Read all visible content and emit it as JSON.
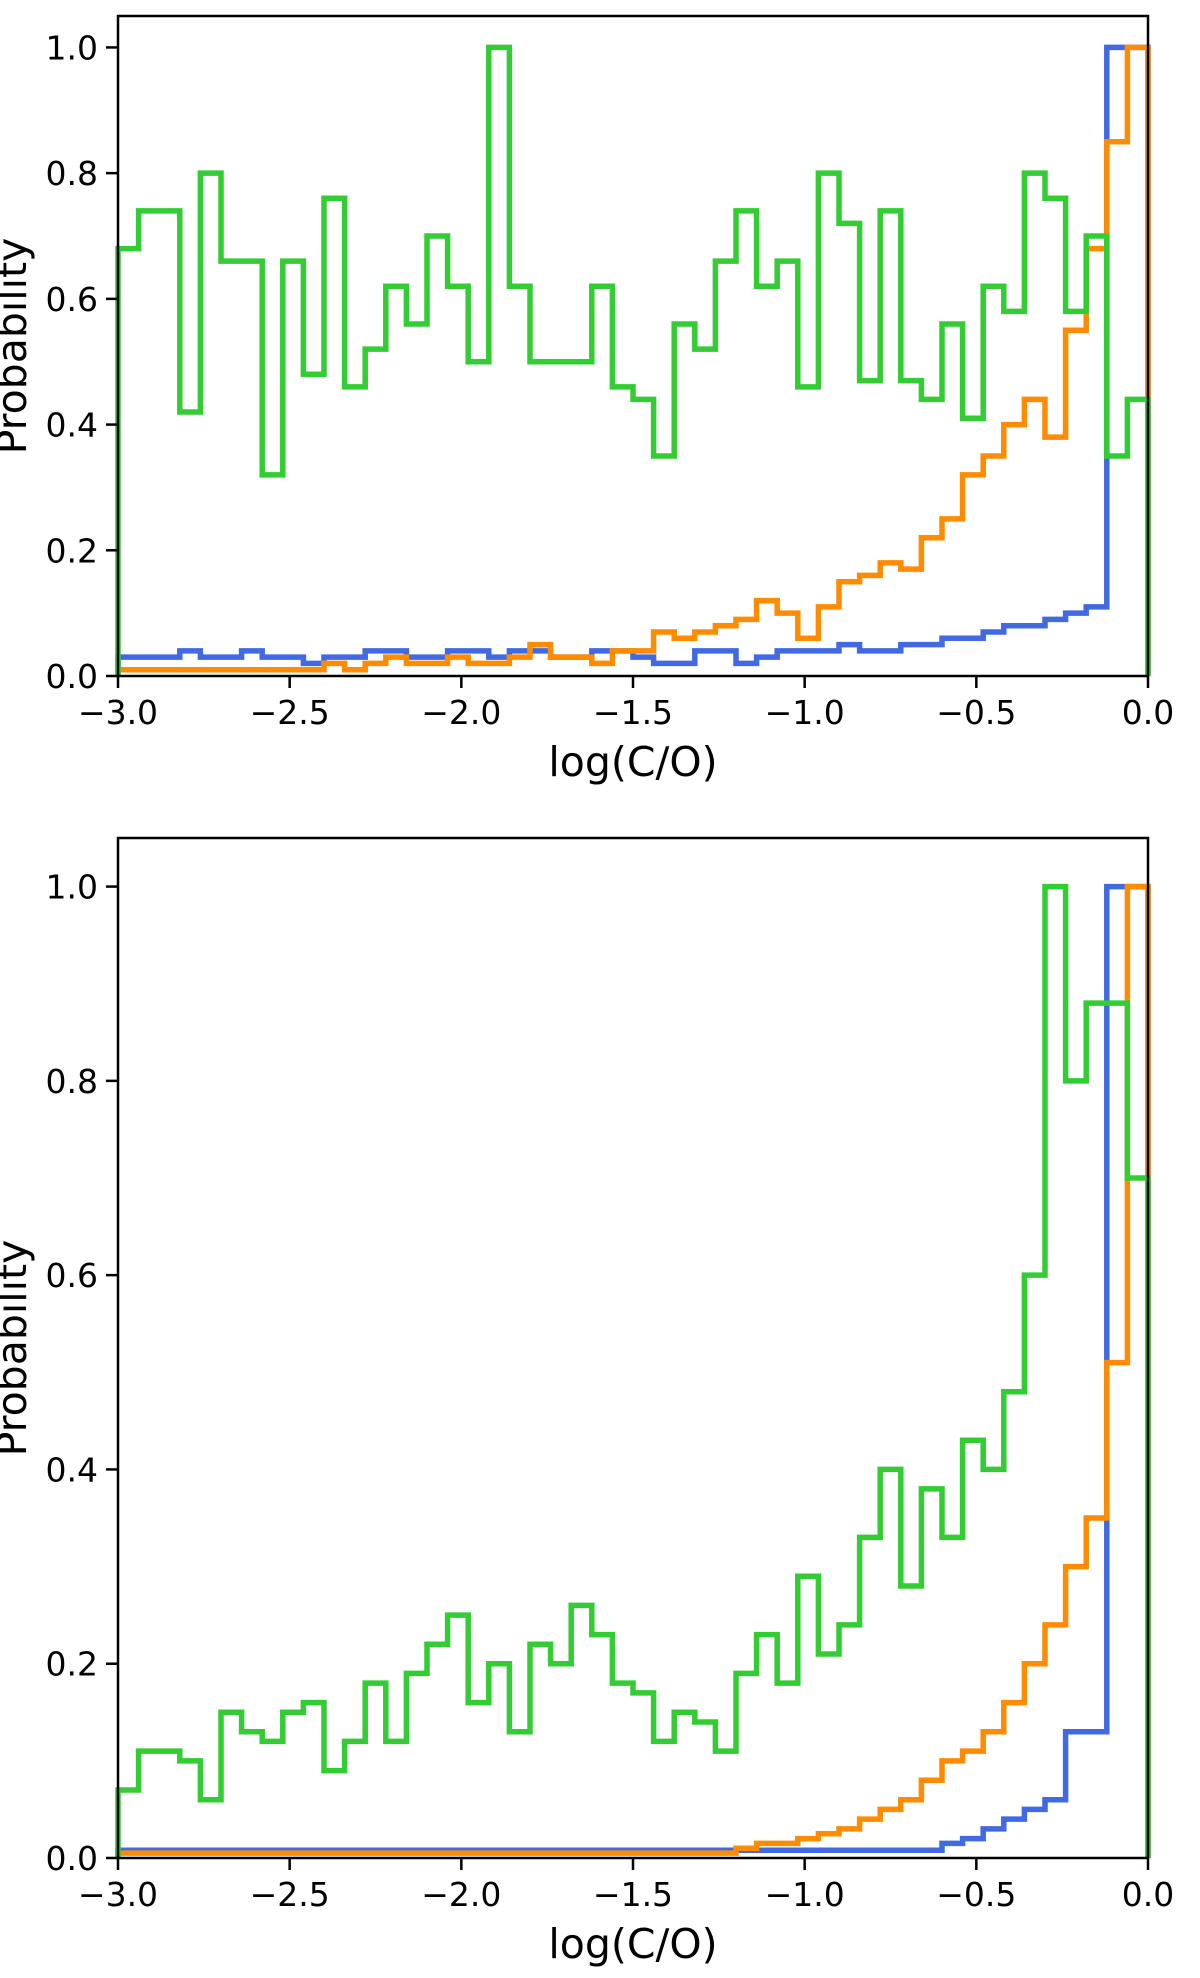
{
  "figure": {
    "background": "#ffffff",
    "frame_color": "#000000"
  },
  "chart_data": [
    {
      "type": "step-histogram",
      "panel": "top",
      "title": "",
      "xlabel": "log(C/O)",
      "ylabel": "Probability",
      "xlim": [
        -3.0,
        0.0
      ],
      "ylim": [
        0.0,
        1.05
      ],
      "grid": false,
      "legend": null,
      "xticks": [
        -3.0,
        -2.5,
        -2.0,
        -1.5,
        -1.0,
        -0.5,
        0.0
      ],
      "xtick_labels": [
        "−3.0",
        "−2.5",
        "−2.0",
        "−1.5",
        "−1.0",
        "−0.5",
        "0.0"
      ],
      "yticks": [
        0.0,
        0.2,
        0.4,
        0.6,
        0.8,
        1.0
      ],
      "ytick_labels": [
        "0.0",
        "0.2",
        "0.4",
        "0.6",
        "0.8",
        "1.0"
      ],
      "bin_start": -3.0,
      "bin_width": 0.06,
      "series": [
        {
          "name": "blue",
          "color": "#4169e1",
          "values": [
            0.03,
            0.03,
            0.03,
            0.04,
            0.03,
            0.03,
            0.04,
            0.03,
            0.03,
            0.02,
            0.03,
            0.03,
            0.04,
            0.04,
            0.03,
            0.03,
            0.04,
            0.04,
            0.03,
            0.04,
            0.04,
            0.03,
            0.03,
            0.04,
            0.04,
            0.03,
            0.02,
            0.02,
            0.04,
            0.04,
            0.02,
            0.03,
            0.04,
            0.04,
            0.04,
            0.05,
            0.04,
            0.04,
            0.05,
            0.05,
            0.06,
            0.06,
            0.07,
            0.08,
            0.08,
            0.09,
            0.1,
            0.11,
            1.0,
            1.0
          ]
        },
        {
          "name": "orange",
          "color": "#ff8c00",
          "values": [
            0.01,
            0.01,
            0.01,
            0.01,
            0.01,
            0.01,
            0.01,
            0.01,
            0.01,
            0.01,
            0.02,
            0.01,
            0.02,
            0.03,
            0.02,
            0.02,
            0.03,
            0.02,
            0.02,
            0.03,
            0.05,
            0.03,
            0.03,
            0.02,
            0.04,
            0.04,
            0.07,
            0.06,
            0.07,
            0.08,
            0.09,
            0.12,
            0.1,
            0.06,
            0.11,
            0.15,
            0.16,
            0.18,
            0.17,
            0.22,
            0.25,
            0.32,
            0.35,
            0.4,
            0.44,
            0.38,
            0.55,
            0.68,
            0.85,
            1.0
          ]
        },
        {
          "name": "green",
          "color": "#32cd32",
          "values": [
            0.68,
            0.74,
            0.74,
            0.42,
            0.8,
            0.66,
            0.66,
            0.32,
            0.66,
            0.48,
            0.76,
            0.46,
            0.52,
            0.62,
            0.56,
            0.7,
            0.62,
            0.5,
            1.0,
            0.62,
            0.5,
            0.5,
            0.5,
            0.62,
            0.46,
            0.44,
            0.35,
            0.56,
            0.52,
            0.66,
            0.74,
            0.62,
            0.66,
            0.46,
            0.8,
            0.72,
            0.47,
            0.74,
            0.47,
            0.44,
            0.56,
            0.41,
            0.62,
            0.58,
            0.8,
            0.76,
            0.58,
            0.7,
            0.35,
            0.44
          ]
        }
      ]
    },
    {
      "type": "step-histogram",
      "panel": "bottom",
      "title": "",
      "xlabel": "log(C/O)",
      "ylabel": "Probability",
      "xlim": [
        -3.0,
        0.0
      ],
      "ylim": [
        0.0,
        1.05
      ],
      "grid": false,
      "legend": null,
      "xticks": [
        -3.0,
        -2.5,
        -2.0,
        -1.5,
        -1.0,
        -0.5,
        0.0
      ],
      "xtick_labels": [
        "−3.0",
        "−2.5",
        "−2.0",
        "−1.5",
        "−1.0",
        "−0.5",
        "0.0"
      ],
      "yticks": [
        0.0,
        0.2,
        0.4,
        0.6,
        0.8,
        1.0
      ],
      "ytick_labels": [
        "0.0",
        "0.2",
        "0.4",
        "0.6",
        "0.8",
        "1.0"
      ],
      "bin_start": -3.0,
      "bin_width": 0.06,
      "series": [
        {
          "name": "blue",
          "color": "#4169e1",
          "values": [
            0.008,
            0.008,
            0.008,
            0.008,
            0.008,
            0.008,
            0.008,
            0.008,
            0.008,
            0.008,
            0.008,
            0.008,
            0.008,
            0.008,
            0.008,
            0.008,
            0.008,
            0.008,
            0.008,
            0.008,
            0.008,
            0.008,
            0.008,
            0.008,
            0.008,
            0.008,
            0.008,
            0.008,
            0.008,
            0.008,
            0.008,
            0.008,
            0.008,
            0.008,
            0.008,
            0.008,
            0.008,
            0.008,
            0.008,
            0.008,
            0.015,
            0.02,
            0.03,
            0.04,
            0.05,
            0.06,
            0.13,
            0.13,
            1.0,
            1.0
          ]
        },
        {
          "name": "orange",
          "color": "#ff8c00",
          "values": [
            0.005,
            0.005,
            0.005,
            0.005,
            0.005,
            0.005,
            0.005,
            0.005,
            0.005,
            0.005,
            0.005,
            0.005,
            0.005,
            0.005,
            0.005,
            0.005,
            0.005,
            0.005,
            0.005,
            0.005,
            0.005,
            0.005,
            0.005,
            0.005,
            0.005,
            0.005,
            0.005,
            0.005,
            0.005,
            0.005,
            0.01,
            0.015,
            0.015,
            0.02,
            0.025,
            0.03,
            0.04,
            0.05,
            0.06,
            0.08,
            0.1,
            0.11,
            0.13,
            0.16,
            0.2,
            0.24,
            0.3,
            0.35,
            0.51,
            1.0
          ]
        },
        {
          "name": "green",
          "color": "#32cd32",
          "values": [
            0.07,
            0.11,
            0.11,
            0.1,
            0.06,
            0.15,
            0.13,
            0.12,
            0.15,
            0.16,
            0.09,
            0.12,
            0.18,
            0.12,
            0.19,
            0.22,
            0.25,
            0.16,
            0.2,
            0.13,
            0.22,
            0.2,
            0.26,
            0.23,
            0.18,
            0.17,
            0.12,
            0.15,
            0.14,
            0.11,
            0.19,
            0.23,
            0.18,
            0.29,
            0.21,
            0.24,
            0.33,
            0.4,
            0.28,
            0.38,
            0.33,
            0.43,
            0.4,
            0.48,
            0.6,
            1.0,
            0.8,
            0.88,
            0.88,
            0.7
          ]
        }
      ]
    }
  ]
}
